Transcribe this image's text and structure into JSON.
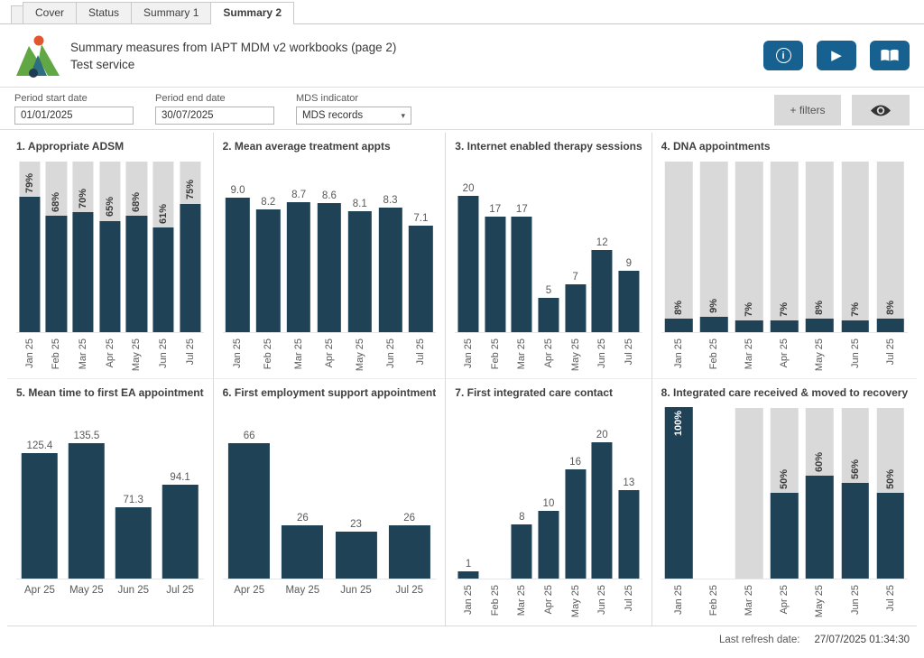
{
  "tabs": [
    {
      "label": "Cover",
      "active": false
    },
    {
      "label": "Status",
      "active": false
    },
    {
      "label": "Summary 1",
      "active": false
    },
    {
      "label": "Summary 2",
      "active": true
    }
  ],
  "header": {
    "title": "Summary measures from IAPT MDM v2 workbooks (page 2)",
    "subtitle": "Test service",
    "buttons": [
      {
        "icon": "info-icon"
      },
      {
        "icon": "play-icon"
      },
      {
        "icon": "book-icon"
      }
    ]
  },
  "filters": {
    "period_start": {
      "label": "Period start date",
      "value": "01/01/2025"
    },
    "period_end": {
      "label": "Period end date",
      "value": "30/07/2025"
    },
    "mds_indicator": {
      "label": "MDS indicator",
      "value": "MDS records"
    },
    "add_filters_label": "+ filters"
  },
  "colors": {
    "bar": "#1f4257",
    "track": "#d9d9d9",
    "accent_blue": "#16618f",
    "button_gray": "#d9d9d9"
  },
  "chart_data": [
    {
      "type": "bar",
      "title": "1. Appropriate ADSM",
      "unit": "%",
      "track": true,
      "ylim": [
        0,
        100
      ],
      "categories": [
        "Jan 25",
        "Feb 25",
        "Mar 25",
        "Apr 25",
        "May 25",
        "Jun 25",
        "Jul 25"
      ],
      "values": [
        79,
        68,
        70,
        65,
        68,
        61,
        75
      ],
      "labels": [
        "79%",
        "68%",
        "70%",
        "65%",
        "68%",
        "61%",
        "75%"
      ],
      "rotated_value_labels": true,
      "rotated_category_labels": true
    },
    {
      "type": "bar",
      "title": "2.  Mean average treatment appts",
      "track": false,
      "ylim": [
        0,
        10
      ],
      "categories": [
        "Jan 25",
        "Feb 25",
        "Mar 25",
        "Apr 25",
        "May 25",
        "Jun 25",
        "Jul 25"
      ],
      "values": [
        9.0,
        8.2,
        8.7,
        8.6,
        8.1,
        8.3,
        7.1
      ],
      "labels": [
        "9.0",
        "8.2",
        "8.7",
        "8.6",
        "8.1",
        "8.3",
        "7.1"
      ],
      "rotated_value_labels": false,
      "rotated_category_labels": true
    },
    {
      "type": "bar",
      "title": "3.  Internet enabled therapy sessions",
      "track": false,
      "ylim": [
        0,
        22
      ],
      "categories": [
        "Jan 25",
        "Feb 25",
        "Mar 25",
        "Apr 25",
        "May 25",
        "Jun 25",
        "Jul 25"
      ],
      "values": [
        20,
        17,
        17,
        5,
        7,
        12,
        9
      ],
      "labels": [
        "20",
        "17",
        "17",
        "5",
        "7",
        "12",
        "9"
      ],
      "rotated_value_labels": false,
      "rotated_category_labels": true
    },
    {
      "type": "bar",
      "title": "4. DNA appointments",
      "unit": "%",
      "track": true,
      "ylim": [
        0,
        100
      ],
      "categories": [
        "Jan 25",
        "Feb 25",
        "Mar 25",
        "Apr 25",
        "May 25",
        "Jun 25",
        "Jul 25"
      ],
      "values": [
        8,
        9,
        7,
        7,
        8,
        7,
        8
      ],
      "labels": [
        "8%",
        "9%",
        "7%",
        "7%",
        "8%",
        "7%",
        "8%"
      ],
      "rotated_value_labels": true,
      "rotated_category_labels": true
    },
    {
      "type": "bar",
      "title": "5. Mean time to first EA appointment",
      "track": false,
      "ylim": [
        0,
        150
      ],
      "categories": [
        "Apr 25",
        "May 25",
        "Jun 25",
        "Jul 25"
      ],
      "values": [
        125.4,
        135.5,
        71.3,
        94.1
      ],
      "labels": [
        "125.4",
        "135.5",
        "71.3",
        "94.1"
      ],
      "rotated_value_labels": false,
      "rotated_category_labels": false
    },
    {
      "type": "bar",
      "title": "6. First employment support appointment",
      "track": false,
      "ylim": [
        0,
        73
      ],
      "categories": [
        "Apr 25",
        "May 25",
        "Jun 25",
        "Jul 25"
      ],
      "values": [
        66,
        26,
        23,
        26
      ],
      "labels": [
        "66",
        "26",
        "23",
        "26"
      ],
      "rotated_value_labels": false,
      "rotated_category_labels": false
    },
    {
      "type": "bar",
      "title": "7. First integrated care contact",
      "track": false,
      "ylim": [
        0,
        22
      ],
      "categories": [
        "Jan 25",
        "Feb 25",
        "Mar 25",
        "Apr 25",
        "May 25",
        "Jun 25",
        "Jul 25"
      ],
      "values": [
        1,
        null,
        8,
        10,
        16,
        20,
        13
      ],
      "labels": [
        "1",
        null,
        "8",
        "10",
        "16",
        "20",
        "13"
      ],
      "rotated_value_labels": false,
      "rotated_category_labels": true
    },
    {
      "type": "bar",
      "title": "8. Integrated care received & moved to recovery",
      "unit": "%",
      "track": true,
      "ylim": [
        0,
        100
      ],
      "categories": [
        "Jan 25",
        "Feb 25",
        "Mar 25",
        "Apr 25",
        "May 25",
        "Jun 25",
        "Jul 25"
      ],
      "values": [
        100,
        null,
        0,
        50,
        60,
        56,
        50
      ],
      "labels": [
        "100%",
        null,
        null,
        "50%",
        "60%",
        "56%",
        "50%"
      ],
      "rotated_value_labels": true,
      "rotated_category_labels": true
    }
  ],
  "footer": {
    "label": "Last refresh date:",
    "value": "27/07/2025 01:34:30"
  }
}
